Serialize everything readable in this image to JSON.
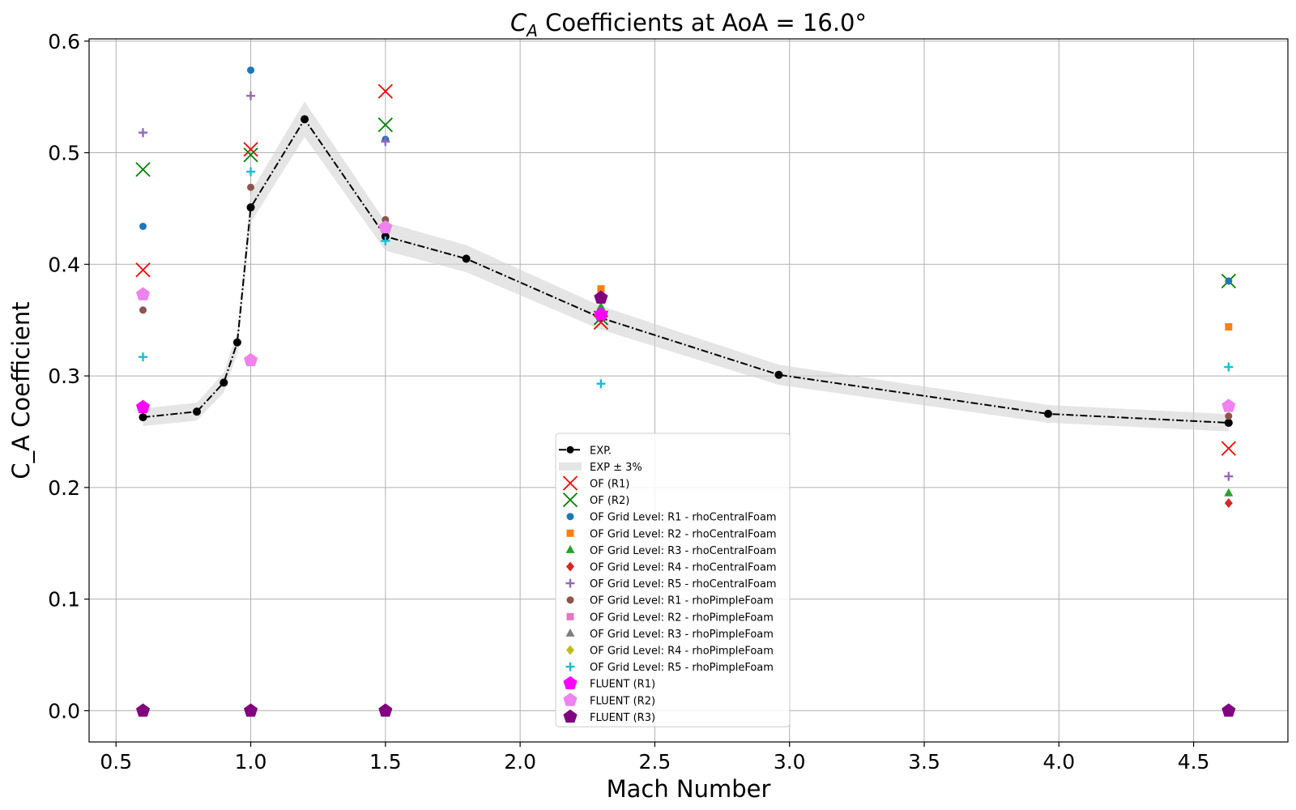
{
  "chart_data": {
    "type": "scatter",
    "title": {
      "main": "C",
      "sub": "A",
      "rest": " Coefficients at AoA = 16.0°"
    },
    "xlabel": "Mach Number",
    "ylabel": "C_A Coefficient",
    "xlim": [
      0.4,
      4.85
    ],
    "ylim": [
      -0.028,
      0.602
    ],
    "xticks": [
      "0.5",
      "1.0",
      "1.5",
      "2.0",
      "2.5",
      "3.0",
      "3.5",
      "4.0",
      "4.5"
    ],
    "yticks": [
      "0.0",
      "0.1",
      "0.2",
      "0.3",
      "0.4",
      "0.5",
      "0.6"
    ],
    "grid": true,
    "legend_position": "lower-center",
    "experiment": {
      "name": "EXP.",
      "band_name": "EXP ± 3%",
      "band_fraction": 0.03,
      "color": "#000000",
      "band_color": "#d3d3d3",
      "x": [
        0.6,
        0.8,
        0.9,
        0.95,
        1.0,
        1.2,
        1.5,
        1.8,
        2.3,
        2.96,
        3.96,
        4.63
      ],
      "y": [
        0.263,
        0.268,
        0.294,
        0.33,
        0.451,
        0.53,
        0.425,
        0.405,
        0.352,
        0.301,
        0.266,
        0.258
      ]
    },
    "series": [
      {
        "name": "OF (R1)",
        "marker": "x",
        "color": "#ff0000",
        "x": [
          0.6,
          1.0,
          1.5,
          2.3,
          4.63
        ],
        "y": [
          0.395,
          0.503,
          0.555,
          0.348,
          0.235
        ]
      },
      {
        "name": "OF (R2)",
        "marker": "x",
        "color": "#008000",
        "x": [
          0.6,
          1.0,
          1.5,
          2.3,
          4.63
        ],
        "y": [
          0.485,
          0.498,
          0.525,
          0.352,
          0.385
        ]
      },
      {
        "name": "OF Grid Level: R1 - rhoCentralFoam",
        "marker": "circle",
        "color": "#1f77b4",
        "x": [
          0.6,
          1.0,
          1.5,
          4.63
        ],
        "y": [
          0.434,
          0.574,
          0.512,
          0.385
        ]
      },
      {
        "name": "OF Grid Level: R2 - rhoCentralFoam",
        "marker": "square",
        "color": "#ff7f0e",
        "x": [
          2.3,
          4.63
        ],
        "y": [
          0.378,
          0.344
        ]
      },
      {
        "name": "OF Grid Level: R3 - rhoCentralFoam",
        "marker": "triangle",
        "color": "#2ca02c",
        "x": [
          2.3,
          4.63
        ],
        "y": [
          0.362,
          0.195
        ]
      },
      {
        "name": "OF Grid Level: R4 - rhoCentralFoam",
        "marker": "diamond",
        "color": "#d62728",
        "x": [
          2.3,
          4.63
        ],
        "y": [
          0.355,
          0.186
        ]
      },
      {
        "name": "OF Grid Level: R5 - rhoCentralFoam",
        "marker": "plus",
        "color": "#9467bd",
        "x": [
          0.6,
          1.0,
          1.5,
          4.63
        ],
        "y": [
          0.518,
          0.551,
          0.51,
          0.21
        ]
      },
      {
        "name": "OF Grid Level: R1 - rhoPimpleFoam",
        "marker": "circle",
        "color": "#8c564b",
        "x": [
          0.6,
          1.0,
          1.5,
          4.63
        ],
        "y": [
          0.359,
          0.469,
          0.44,
          0.264
        ]
      },
      {
        "name": "OF Grid Level: R2 - rhoPimpleFoam",
        "marker": "square",
        "color": "#e377c2",
        "x": [],
        "y": []
      },
      {
        "name": "OF Grid Level: R3 - rhoPimpleFoam",
        "marker": "triangle",
        "color": "#7f7f7f",
        "x": [],
        "y": []
      },
      {
        "name": "OF Grid Level: R4 - rhoPimpleFoam",
        "marker": "diamond",
        "color": "#bcbd22",
        "x": [],
        "y": []
      },
      {
        "name": "OF Grid Level: R5 - rhoPimpleFoam",
        "marker": "plus",
        "color": "#17becf",
        "x": [
          0.6,
          1.0,
          1.5,
          2.3,
          4.63
        ],
        "y": [
          0.317,
          0.483,
          0.421,
          0.293,
          0.308
        ]
      },
      {
        "name": "FLUENT (R1)",
        "marker": "pentagon",
        "color": "#ff00ff",
        "x": [
          0.6,
          2.3
        ],
        "y": [
          0.272,
          0.355
        ]
      },
      {
        "name": "FLUENT (R2)",
        "marker": "pentagon",
        "color": "#ee82ee",
        "x": [
          0.6,
          1.0,
          1.5,
          4.63
        ],
        "y": [
          0.373,
          0.314,
          0.433,
          0.273
        ]
      },
      {
        "name": "FLUENT (R3)",
        "marker": "pentagon",
        "color": "#800080",
        "x": [
          0.6,
          1.0,
          1.5,
          2.3,
          4.63
        ],
        "y": [
          0.0,
          0.0,
          0.0,
          0.37,
          0.0
        ]
      }
    ]
  }
}
